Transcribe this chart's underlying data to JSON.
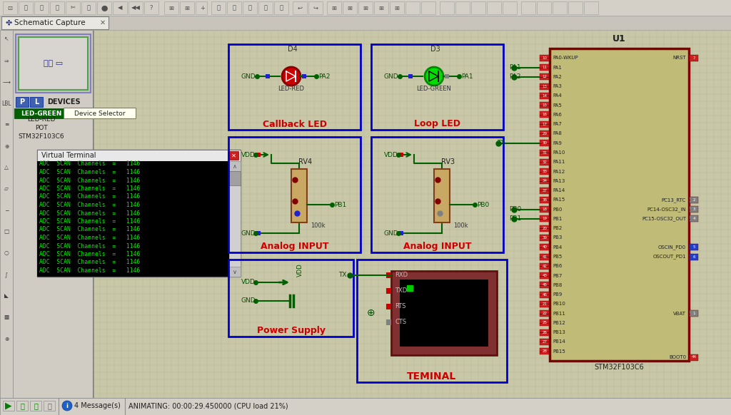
{
  "bg_color": "#c8c8a8",
  "toolbar_color": "#d4d0c8",
  "panel_color": "#d0cec8",
  "grid_color": "#b8b89a",
  "terminal_text": [
    "ADC  SCAN  Channels  =   1146",
    "ADC  SCAN  Channels  =   1146",
    "ADC  SCAN  Channels  =   1146",
    "ADC  SCAN  Channels  =   1146",
    "ADC  SCAN  Channels  =   1146",
    "ADC  SCAN  Channels  =   1146",
    "ADC  SCAN  Channels  =   1146",
    "ADC  SCAN  Channels  =   1146",
    "ADC  SCAN  Channels  =   1146",
    "ADC  SCAN  Channels  =   1146",
    "ADC  SCAN  Channels  =   1146",
    "ADC  SCAN  Channels  =   1146",
    "ADC  SCAN  Channels  =   1146",
    "ADC  SCAN  Channels  =   1146"
  ],
  "status_bar": "ANIMATING: 00:00:29.450000 (CPU load 21%)",
  "messages": "4 Message(s)",
  "left_pins": [
    [
      "10",
      "PA0-WKUP"
    ],
    [
      "11",
      "PA1"
    ],
    [
      "12",
      "PA2"
    ],
    [
      "13",
      "PA3"
    ],
    [
      "14",
      "PA4"
    ],
    [
      "15",
      "PA5"
    ],
    [
      "16",
      "PA6"
    ],
    [
      "17",
      "PA7"
    ],
    [
      "29",
      "PA8"
    ],
    [
      "30",
      "PA9"
    ],
    [
      "31",
      "PA10"
    ],
    [
      "32",
      "PA11"
    ],
    [
      "33",
      "PA12"
    ],
    [
      "34",
      "PA13"
    ],
    [
      "37",
      "PA14"
    ],
    [
      "38",
      "PA15"
    ],
    [
      "18",
      "PB0"
    ],
    [
      "19",
      "PB1"
    ],
    [
      "20",
      "PB2"
    ],
    [
      "39",
      "PB3"
    ],
    [
      "40",
      "PB4"
    ],
    [
      "41",
      "PB5"
    ],
    [
      "42",
      "PB6"
    ],
    [
      "43",
      "PB7"
    ],
    [
      "45",
      "PB8"
    ],
    [
      "46",
      "PB9"
    ],
    [
      "21",
      "PB10"
    ],
    [
      "22",
      "PB11"
    ],
    [
      "25",
      "PB12"
    ],
    [
      "26",
      "PB13"
    ],
    [
      "27",
      "PB14"
    ],
    [
      "28",
      "PB15"
    ]
  ],
  "right_pins": [
    [
      "7",
      "NRST",
      "top"
    ],
    [
      "2",
      "PC13_RTC",
      "mid"
    ],
    [
      "3",
      "PC14-OSC32_IN",
      "mid"
    ],
    [
      "4",
      "PC15-OSC32_OUT",
      "mid"
    ],
    [
      "5",
      "OSCIN_PD0",
      "blue"
    ],
    [
      "6",
      "OSCOUT_PD1",
      "blue"
    ],
    [
      "1",
      "VBAT",
      "none"
    ],
    [
      "44",
      "BOOT0",
      "red"
    ]
  ]
}
